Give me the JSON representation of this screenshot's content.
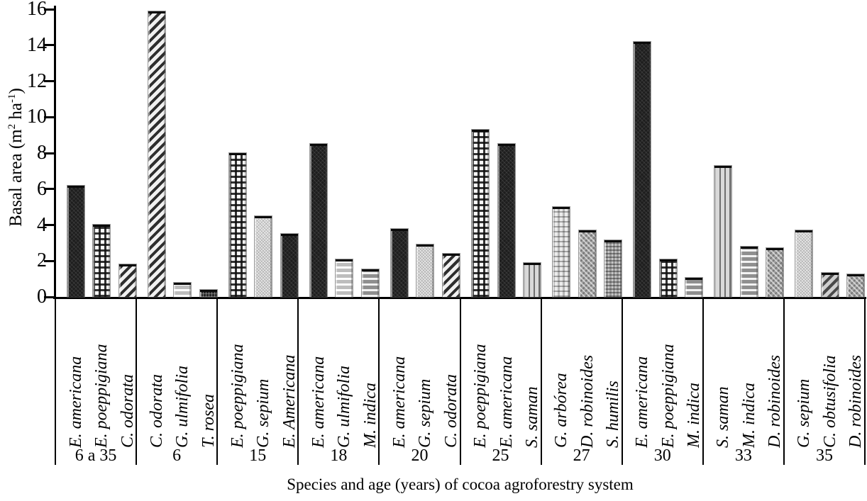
{
  "figure": {
    "background": "#ffffff",
    "axis_color": "#000000",
    "text_color": "#000000"
  },
  "chart_data": {
    "type": "bar",
    "title": "",
    "xlabel": "Species and age (years) of cocoa agroforestry system",
    "ylabel": "Basal area (m2 ha-1)",
    "ylabel_parts": {
      "prefix": "Basal area (m",
      "sup1": "2",
      "mid": " ha",
      "sup2": "-1",
      "suffix": ")"
    },
    "ylim": [
      0,
      16
    ],
    "yticks": [
      0,
      2,
      4,
      6,
      8,
      10,
      12,
      14,
      16
    ],
    "grid": false,
    "legend": "none",
    "groups": [
      {
        "age": "6 a 35",
        "bars": [
          {
            "species": "E. americana",
            "value": 6.2,
            "pattern": "dark"
          },
          {
            "species": "E. poeppigiana",
            "value": 4.0,
            "pattern": "plaid"
          },
          {
            "species": "C. odorata",
            "value": 1.8,
            "pattern": "diag"
          }
        ]
      },
      {
        "age": "6",
        "bars": [
          {
            "species": "C. odorata",
            "value": 15.9,
            "pattern": "diag"
          },
          {
            "species": "G. ulmifolia",
            "value": 0.8,
            "pattern": "hlines"
          },
          {
            "species": "T. rosea",
            "value": 0.4,
            "pattern": "darkcheck"
          }
        ]
      },
      {
        "age": "15",
        "bars": [
          {
            "species": "E. poeppigiana",
            "value": 8.0,
            "pattern": "plaid"
          },
          {
            "species": "G. sepium",
            "value": 4.5,
            "pattern": "stipple"
          },
          {
            "species": "E. Americana",
            "value": 3.5,
            "pattern": "dark"
          }
        ]
      },
      {
        "age": "18",
        "bars": [
          {
            "species": "E. americana",
            "value": 8.5,
            "pattern": "dark"
          },
          {
            "species": "G. ulmifolia",
            "value": 2.1,
            "pattern": "hlines"
          },
          {
            "species": "M. indica",
            "value": 1.55,
            "pattern": "hstripe"
          }
        ]
      },
      {
        "age": "20",
        "bars": [
          {
            "species": "E. americana",
            "value": 3.8,
            "pattern": "dark"
          },
          {
            "species": "G. sepium",
            "value": 2.9,
            "pattern": "stipple"
          },
          {
            "species": "C. odorata",
            "value": 2.4,
            "pattern": "diag"
          }
        ]
      },
      {
        "age": "25",
        "bars": [
          {
            "species": "E. poeppigiana",
            "value": 9.3,
            "pattern": "plaid"
          },
          {
            "species": "E. americana",
            "value": 8.5,
            "pattern": "dark"
          },
          {
            "species": "S. saman",
            "value": 1.9,
            "pattern": "vlines"
          }
        ]
      },
      {
        "age": "27",
        "bars": [
          {
            "species": "G. arbórea",
            "value": 5.0,
            "pattern": "lightcheck"
          },
          {
            "species": "D. robinoides",
            "value": 3.7,
            "pattern": "dots"
          },
          {
            "species": "S. humilis",
            "value": 3.15,
            "pattern": "smallcheck"
          }
        ]
      },
      {
        "age": "30",
        "bars": [
          {
            "species": "E. americana",
            "value": 14.2,
            "pattern": "dark"
          },
          {
            "species": "E. poeppigiana",
            "value": 2.1,
            "pattern": "plaid"
          },
          {
            "species": "M. indica",
            "value": 1.05,
            "pattern": "hstripe"
          }
        ]
      },
      {
        "age": "33",
        "bars": [
          {
            "species": "S. saman",
            "value": 7.3,
            "pattern": "vlines"
          },
          {
            "species": "M. indica",
            "value": 2.8,
            "pattern": "hstripe"
          },
          {
            "species": "D. robinoides",
            "value": 2.7,
            "pattern": "dots"
          }
        ]
      },
      {
        "age": "35",
        "bars": [
          {
            "species": "G. sepium",
            "value": 3.7,
            "pattern": "stipple"
          },
          {
            "species": "C. obtusifolia",
            "value": 1.35,
            "pattern": "diagcoarse"
          },
          {
            "species": "D. robinoides",
            "value": 1.25,
            "pattern": "dots"
          }
        ]
      }
    ]
  }
}
